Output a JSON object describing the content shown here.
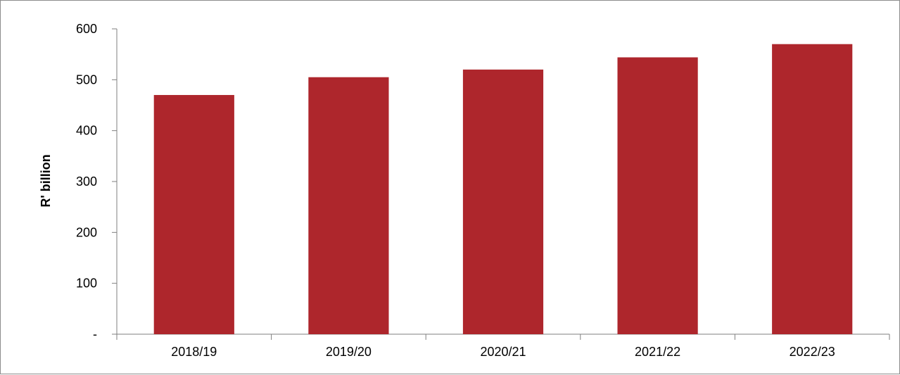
{
  "chart_data": {
    "type": "bar",
    "categories": [
      "2018/19",
      "2019/20",
      "2020/21",
      "2021/22",
      "2022/23"
    ],
    "values": [
      470,
      505,
      520,
      544,
      570
    ],
    "xlabel": "",
    "ylabel": "R' billion",
    "ylim": [
      0,
      600
    ],
    "yticks": [
      0,
      100,
      200,
      300,
      400,
      500,
      600
    ],
    "ytick_labels": [
      "-",
      "100",
      "200",
      "300",
      "400",
      "500",
      "600"
    ],
    "grid": false,
    "legend": "none",
    "bar_color": "#ae262c"
  }
}
